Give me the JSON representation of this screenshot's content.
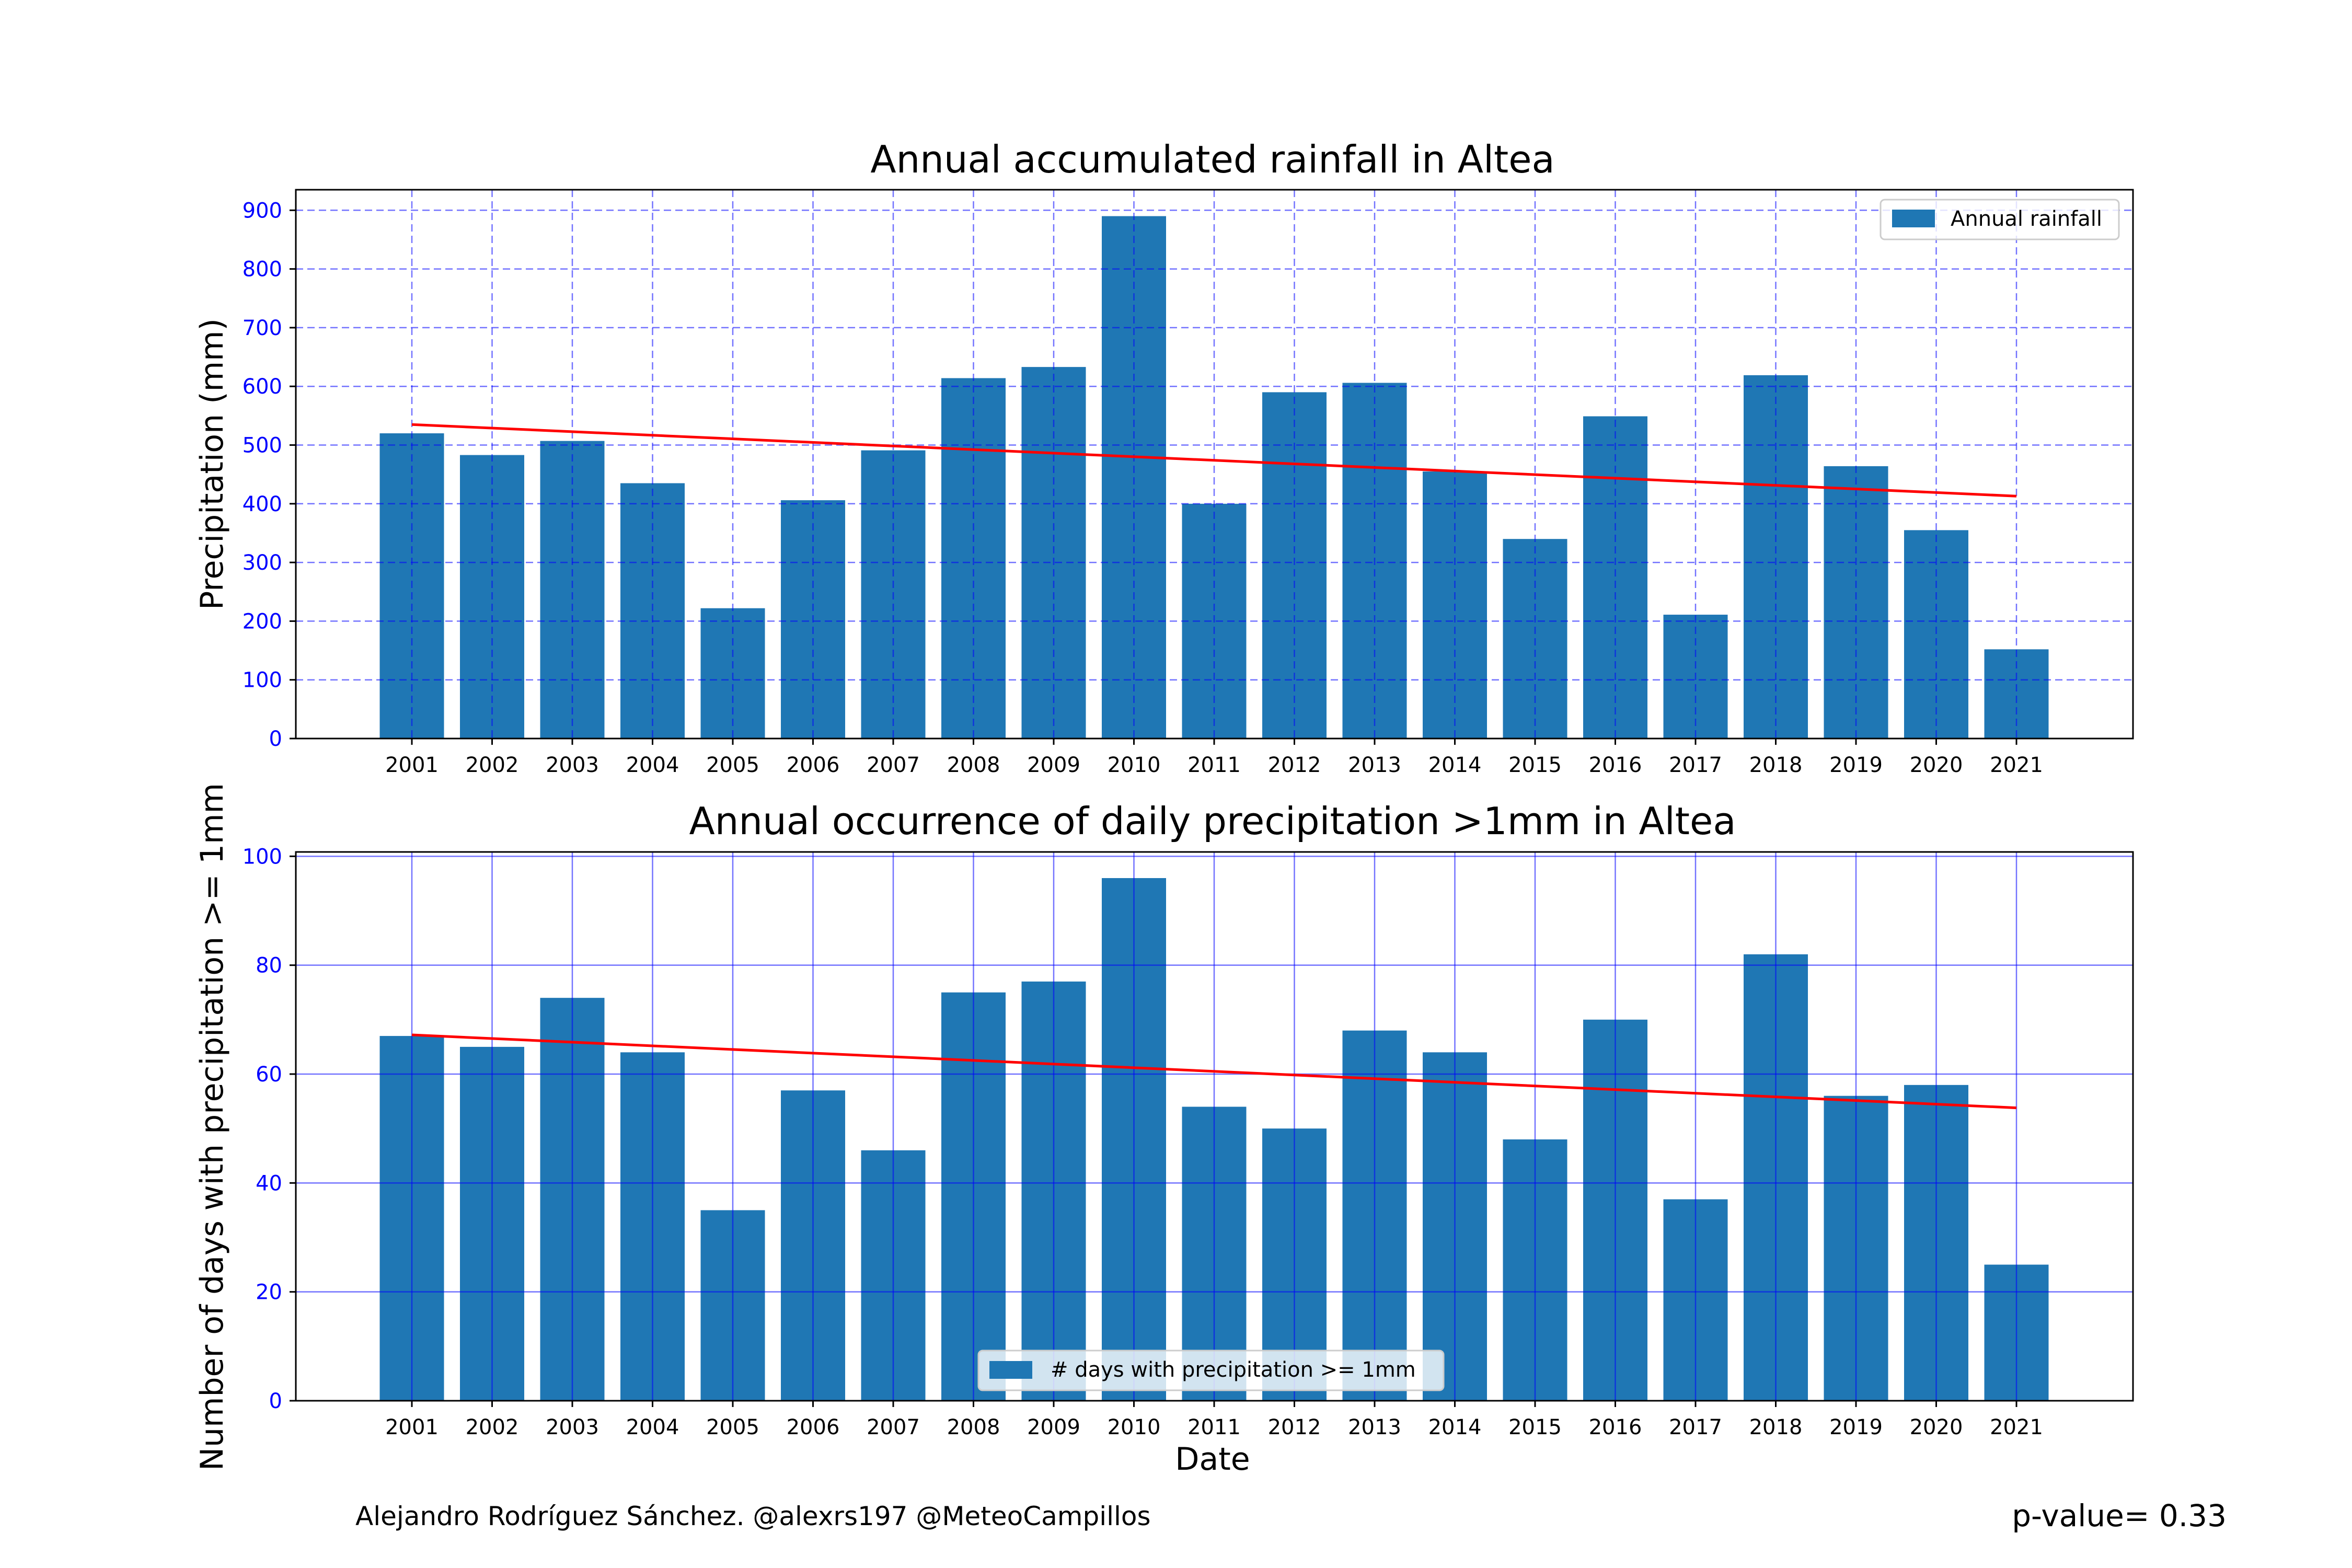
{
  "chart_data": [
    {
      "type": "bar",
      "title": "Annual accumulated rainfall in Altea",
      "xlabel": "",
      "ylabel": "Precipitation (mm)",
      "categories": [
        "2001",
        "2002",
        "2003",
        "2004",
        "2005",
        "2006",
        "2007",
        "2008",
        "2009",
        "2010",
        "2011",
        "2012",
        "2013",
        "2014",
        "2015",
        "2016",
        "2017",
        "2018",
        "2019",
        "2020",
        "2021"
      ],
      "series": [
        {
          "name": "Annual rainfall",
          "values": [
            520,
            483,
            507,
            435,
            222,
            406,
            491,
            614,
            633,
            890,
            400,
            590,
            606,
            455,
            340,
            549,
            211,
            619,
            464,
            355,
            152
          ]
        }
      ],
      "trend_line": {
        "start": 535,
        "end": 413,
        "color": "#ff0000"
      },
      "ylim": [
        0,
        935
      ],
      "yticks": [
        0,
        100,
        200,
        300,
        400,
        500,
        600,
        700,
        800,
        900
      ],
      "grid": "dashed",
      "legend": "top-right",
      "bar_color": "#1f77b4",
      "tick_color": "#0000ff"
    },
    {
      "type": "bar",
      "title": "Annual occurrence of daily precipitation >1mm in Altea",
      "xlabel": "Date",
      "ylabel": "Number of days with precipitation >= 1mm",
      "categories": [
        "2001",
        "2002",
        "2003",
        "2004",
        "2005",
        "2006",
        "2007",
        "2008",
        "2009",
        "2010",
        "2011",
        "2012",
        "2013",
        "2014",
        "2015",
        "2016",
        "2017",
        "2018",
        "2019",
        "2020",
        "2021"
      ],
      "series": [
        {
          "name": "# days with precipitation >= 1mm",
          "values": [
            67,
            65,
            74,
            64,
            35,
            57,
            46,
            75,
            77,
            96,
            54,
            50,
            68,
            64,
            48,
            70,
            37,
            82,
            56,
            58,
            25
          ]
        }
      ],
      "trend_line": {
        "start": 67.2,
        "end": 53.8,
        "color": "#ff0000"
      },
      "ylim": [
        0,
        100.8
      ],
      "yticks": [
        0,
        20,
        40,
        60,
        80,
        100
      ],
      "grid": "solid",
      "legend": "bottom-center",
      "bar_color": "#1f77b4",
      "tick_color": "#0000ff"
    }
  ],
  "footer": {
    "credit": "Alejandro Rodríguez Sánchez. @alexrs197 @MeteoCampillos",
    "p_value": "p-value= 0.33"
  }
}
